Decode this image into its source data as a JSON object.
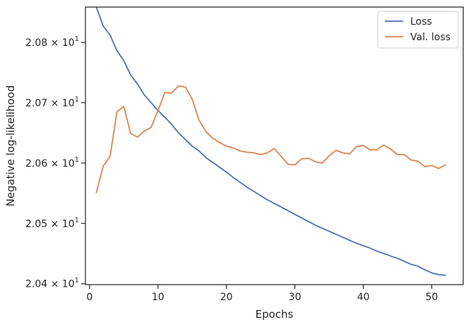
{
  "chart_data": {
    "type": "line",
    "title": "",
    "xlabel": "Epochs",
    "ylabel": "Negative log-likelihood",
    "xlim": [
      -0.6,
      54.6
    ],
    "ylim": [
      20.3985,
      20.8585
    ],
    "x_ticks": [
      0,
      10,
      20,
      30,
      40,
      50
    ],
    "y_ticks": [
      20.4,
      20.5,
      20.6,
      20.7,
      20.8
    ],
    "y_tick_labels": [
      {
        "mantissa": "2.04",
        "exp": "1"
      },
      {
        "mantissa": "2.05",
        "exp": "1"
      },
      {
        "mantissa": "2.06",
        "exp": "1"
      },
      {
        "mantissa": "2.07",
        "exp": "1"
      },
      {
        "mantissa": "2.08",
        "exp": "1"
      }
    ],
    "grid": false,
    "legend_position": "top-right",
    "x": [
      1,
      2,
      3,
      4,
      5,
      6,
      7,
      8,
      9,
      10,
      11,
      12,
      13,
      14,
      15,
      16,
      17,
      18,
      19,
      20,
      21,
      22,
      23,
      24,
      25,
      26,
      27,
      28,
      29,
      30,
      31,
      32,
      33,
      34,
      35,
      36,
      37,
      38,
      39,
      40,
      41,
      42,
      43,
      44,
      45,
      46,
      47,
      48,
      49,
      50,
      51,
      52
    ],
    "series": [
      {
        "name": "Loss",
        "color": "#4c72b0",
        "values": [
          20.858,
          20.827,
          20.812,
          20.786,
          20.77,
          20.746,
          20.731,
          20.713,
          20.7,
          20.687,
          20.676,
          20.664,
          20.65,
          20.639,
          20.628,
          20.62,
          20.609,
          20.601,
          20.593,
          20.585,
          20.576,
          20.568,
          20.56,
          20.553,
          20.546,
          20.539,
          20.533,
          20.527,
          20.521,
          20.515,
          20.509,
          20.503,
          20.497,
          20.492,
          20.487,
          20.482,
          20.477,
          20.472,
          20.467,
          20.463,
          20.459,
          20.454,
          20.45,
          20.446,
          20.442,
          20.437,
          20.432,
          20.429,
          20.423,
          20.418,
          20.415,
          20.414
        ]
      },
      {
        "name": "Val. loss",
        "color": "#dd8452",
        "values": [
          20.551,
          20.595,
          20.611,
          20.685,
          20.694,
          20.649,
          20.643,
          20.653,
          20.659,
          20.687,
          20.717,
          20.716,
          20.728,
          20.726,
          20.706,
          20.671,
          20.652,
          20.641,
          20.634,
          20.628,
          20.625,
          20.62,
          20.618,
          20.617,
          20.614,
          20.617,
          20.624,
          20.611,
          20.598,
          20.597,
          20.607,
          20.608,
          20.602,
          20.6,
          20.612,
          20.621,
          20.617,
          20.615,
          20.627,
          20.629,
          20.622,
          20.622,
          20.63,
          20.623,
          20.614,
          20.614,
          20.605,
          20.603,
          20.594,
          20.596,
          20.591,
          20.597
        ]
      }
    ]
  }
}
